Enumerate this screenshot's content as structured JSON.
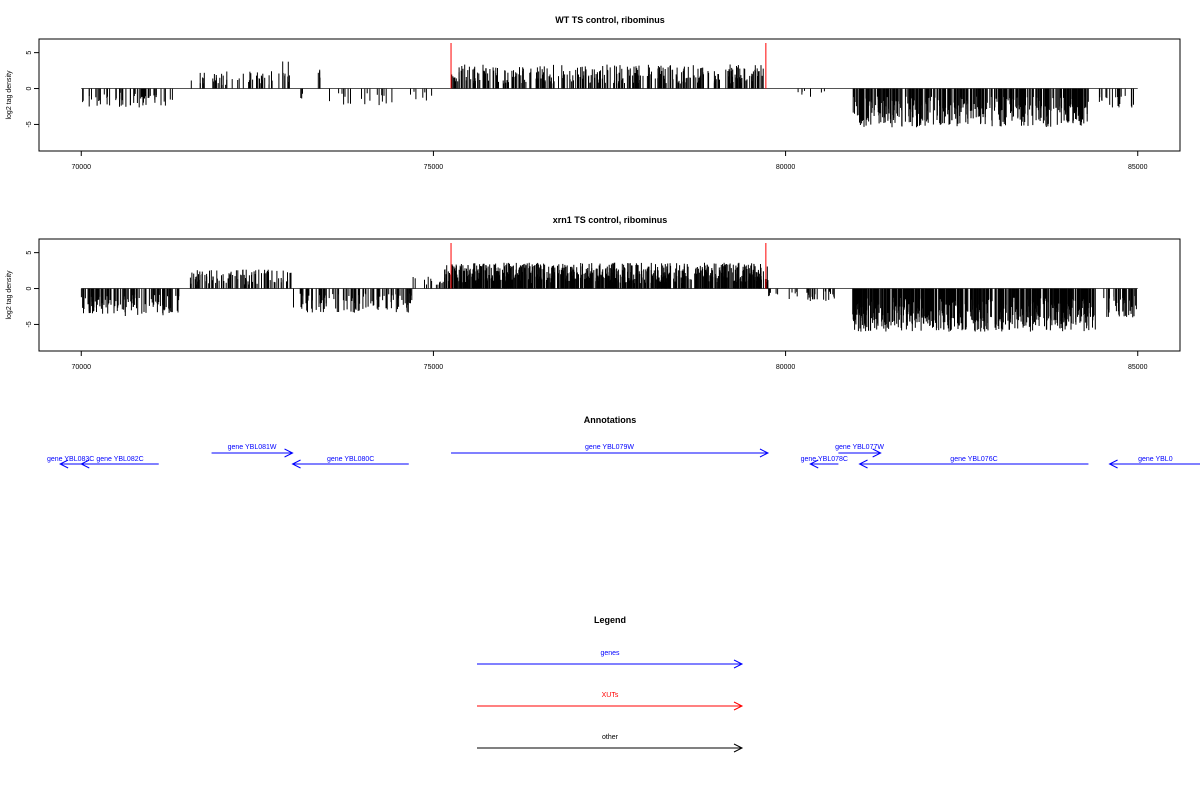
{
  "colors": {
    "gene": "#0000ff",
    "xut": "#ff0000",
    "other": "#000000"
  },
  "chart_data": [
    {
      "type": "bar",
      "title": "WT TS control, ribominus",
      "ylabel": "log2 tag density",
      "xlim": [
        69400,
        85600
      ],
      "ylim": [
        -8.7,
        6.9
      ],
      "xticks": [
        70000,
        75000,
        80000,
        85000
      ],
      "yticks": [
        5,
        0,
        -5
      ],
      "grid": false,
      "xut_markers": [
        75250,
        79720
      ],
      "coverage": [
        {
          "start": 70000,
          "end": 71300,
          "sign": -1,
          "amp": 2.2,
          "density": 0.6
        },
        {
          "start": 71550,
          "end": 73000,
          "sign": 1,
          "amp": 2.0,
          "density": 0.45
        },
        {
          "start": 72800,
          "end": 72950,
          "sign": 1,
          "amp": 3.3,
          "density": 0.8
        },
        {
          "start": 73100,
          "end": 73200,
          "sign": -1,
          "amp": 1.2,
          "density": 0.4
        },
        {
          "start": 73350,
          "end": 73400,
          "sign": 1,
          "amp": 2.2,
          "density": 1.0
        },
        {
          "start": 73500,
          "end": 74500,
          "sign": -1,
          "amp": 2.0,
          "density": 0.25
        },
        {
          "start": 74650,
          "end": 75050,
          "sign": -1,
          "amp": 1.5,
          "density": 0.25
        },
        {
          "start": 75250,
          "end": 79700,
          "sign": 1,
          "amp": 2.8,
          "density": 1.0
        },
        {
          "start": 79750,
          "end": 80600,
          "sign": -1,
          "amp": 1.0,
          "density": 0.12
        },
        {
          "start": 80950,
          "end": 84300,
          "sign": -1,
          "amp": 4.5,
          "density": 1.8
        },
        {
          "start": 84450,
          "end": 84950,
          "sign": -1,
          "amp": 2.3,
          "density": 0.6
        }
      ]
    },
    {
      "type": "bar",
      "title": "xrn1 TS control, ribominus",
      "ylabel": "log2 tag density",
      "xlim": [
        69400,
        85600
      ],
      "ylim": [
        -8.7,
        6.9
      ],
      "xticks": [
        70000,
        75000,
        80000,
        85000
      ],
      "yticks": [
        5,
        0,
        -5
      ],
      "grid": false,
      "xut_markers": [
        75250,
        79720
      ],
      "coverage": [
        {
          "start": 70000,
          "end": 71400,
          "sign": -1,
          "amp": 3.2,
          "density": 1.2
        },
        {
          "start": 71550,
          "end": 73000,
          "sign": 1,
          "amp": 2.2,
          "density": 0.9
        },
        {
          "start": 73000,
          "end": 74700,
          "sign": -1,
          "amp": 2.8,
          "density": 0.9
        },
        {
          "start": 74700,
          "end": 75150,
          "sign": 1,
          "amp": 1.5,
          "density": 0.4
        },
        {
          "start": 75150,
          "end": 79750,
          "sign": 1,
          "amp": 3.0,
          "density": 2.2
        },
        {
          "start": 79750,
          "end": 80700,
          "sign": -1,
          "amp": 1.5,
          "density": 0.5
        },
        {
          "start": 80950,
          "end": 84400,
          "sign": -1,
          "amp": 5.0,
          "density": 2.5
        },
        {
          "start": 84500,
          "end": 85000,
          "sign": -1,
          "amp": 3.5,
          "density": 1.2
        }
      ]
    }
  ],
  "annotations": {
    "title": "Annotations",
    "genes": [
      {
        "label": "gene YBL083C",
        "start": 70000,
        "end": 69700,
        "row": 1,
        "strand": "-"
      },
      {
        "label": "gene YBL082C",
        "start": 71100,
        "end": 70000,
        "row": 1,
        "strand": "-"
      },
      {
        "label": "gene YBL081W",
        "start": 71850,
        "end": 73000,
        "row": 0,
        "strand": "+"
      },
      {
        "label": "gene YBL080C",
        "start": 74650,
        "end": 73000,
        "row": 1,
        "strand": "-"
      },
      {
        "label": "gene YBL079W",
        "start": 75250,
        "end": 79750,
        "row": 0,
        "strand": "+"
      },
      {
        "label": "gene YBL078C",
        "start": 80750,
        "end": 80350,
        "row": 1,
        "strand": "-"
      },
      {
        "label": "gene YBL077W",
        "start": 80750,
        "end": 81350,
        "row": 0,
        "strand": "+"
      },
      {
        "label": "gene YBL076C",
        "start": 84300,
        "end": 81050,
        "row": 1,
        "strand": "-"
      },
      {
        "label": "gene YBL0",
        "start": 85900,
        "end": 84600,
        "row": 1,
        "strand": "-"
      }
    ]
  },
  "legend": {
    "title": "Legend",
    "items": [
      {
        "label": "genes",
        "color": "#0000ff"
      },
      {
        "label": "XUTs",
        "color": "#ff0000"
      },
      {
        "label": "other",
        "color": "#000000"
      }
    ]
  }
}
